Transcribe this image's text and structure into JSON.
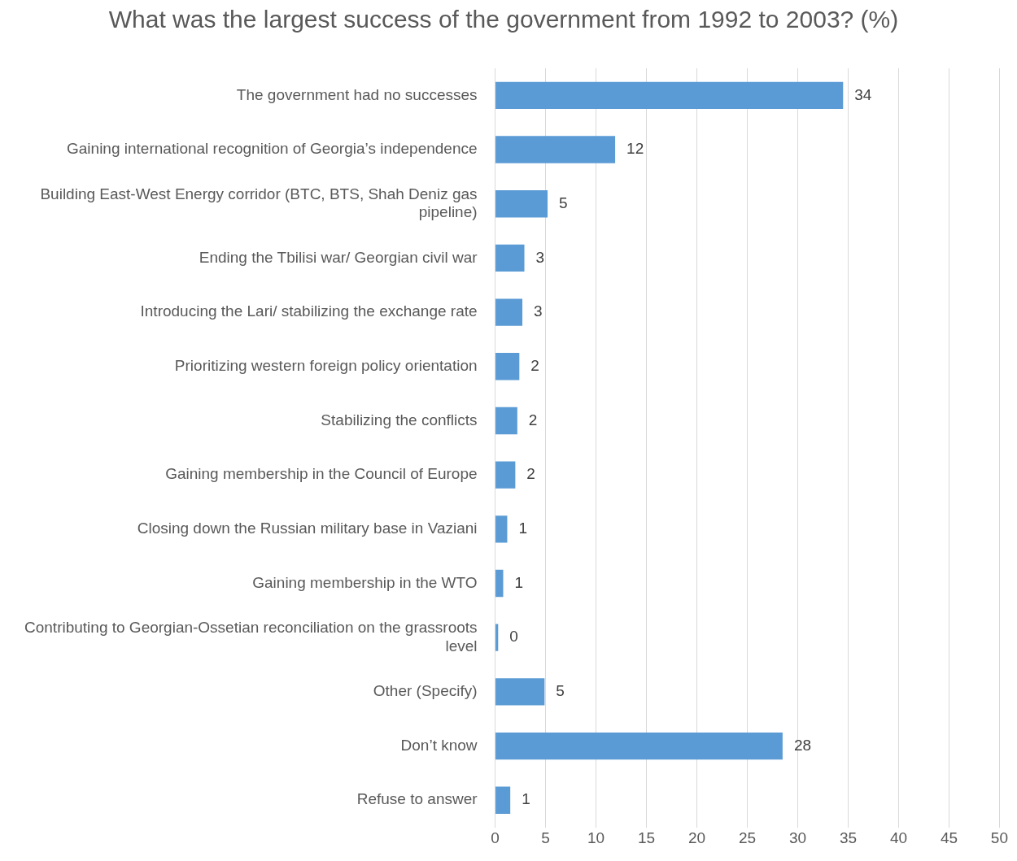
{
  "chart_data": {
    "type": "bar",
    "orientation": "horizontal",
    "title": "What was the largest success of the government from 1992 to 2003? (%)",
    "categories": [
      "The government had no successes",
      "Gaining international recognition of Georgia’s independence",
      "Building East-West Energy corridor (BTC, BTS, Shah Deniz gas pipeline)",
      "Ending the Tbilisi war/ Georgian civil war",
      "Introducing the Lari/ stabilizing the exchange rate",
      "Prioritizing western foreign policy orientation",
      "Stabilizing the conflicts",
      "Gaining membership in the Council of Europe",
      "Closing down the Russian military base in Vaziani",
      "Gaining membership in the WTO",
      "Contributing to Georgian-Ossetian reconciliation on the grassroots level",
      "Other (Specify)",
      "Don’t know",
      "Refuse to answer"
    ],
    "values": [
      34.5,
      11.9,
      5.2,
      2.9,
      2.7,
      2.4,
      2.2,
      2.0,
      1.2,
      0.8,
      0.3,
      4.9,
      28.5,
      1.5
    ],
    "value_labels": [
      "34",
      "12",
      "5",
      "3",
      "3",
      "2",
      "2",
      "2",
      "1",
      "1",
      "0",
      "5",
      "28",
      "1"
    ],
    "color": "#5b9bd5",
    "xlim": [
      0,
      50
    ],
    "xticks": [
      0,
      5,
      10,
      15,
      20,
      25,
      30,
      35,
      40,
      45,
      50
    ],
    "grid": "x",
    "legend": false
  }
}
